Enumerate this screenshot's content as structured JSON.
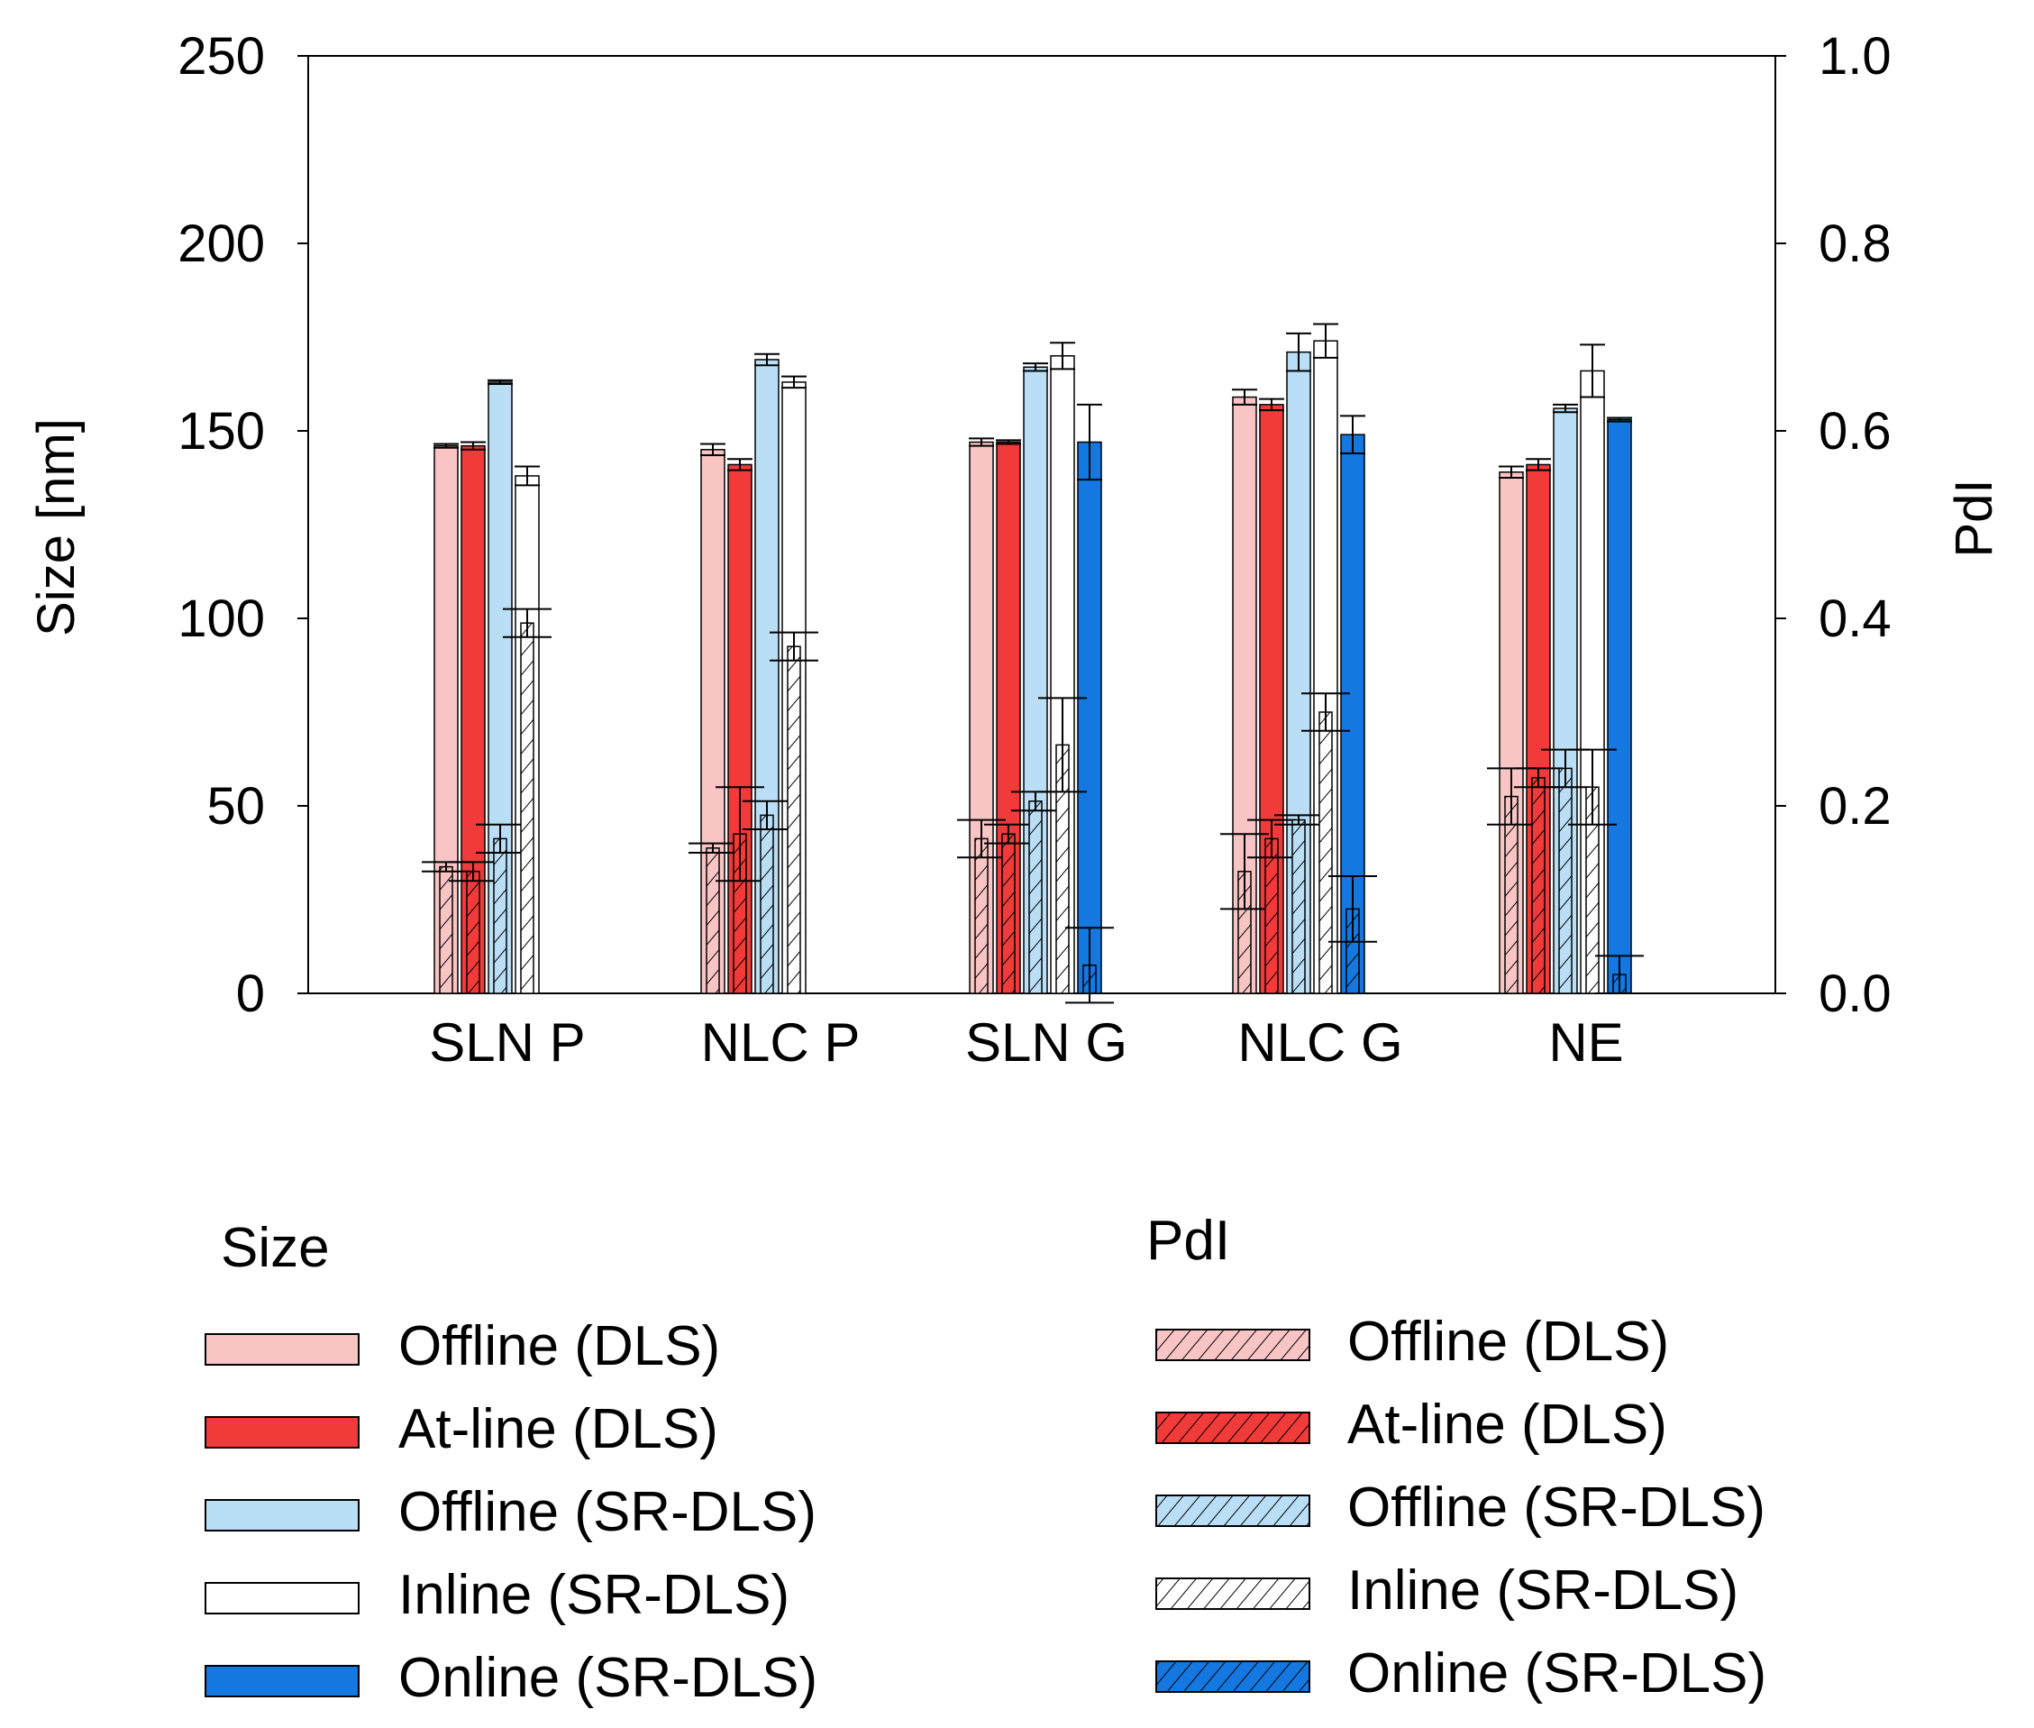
{
  "chart_data": {
    "type": "bar",
    "categories": [
      "SLN P",
      "NLC P",
      "SLN G",
      "NLC G",
      "NE"
    ],
    "y_left": {
      "label": "Size [nm]",
      "range": [
        0,
        250
      ],
      "ticks": [
        "0",
        "50",
        "100",
        "150",
        "200",
        "250"
      ]
    },
    "y_right": {
      "label": "PdI",
      "range": [
        0,
        1.0
      ],
      "ticks": [
        "0.0",
        "0.2",
        "0.4",
        "0.6",
        "0.8",
        "1.0"
      ]
    },
    "colors": {
      "offline_dls": "#f9c4c4",
      "atline_dls": "#f13a3a",
      "offline_srdls": "#b9def6",
      "inline_srdls": "#ffffff",
      "online_srdls": "#1478e0"
    },
    "size_series": [
      {
        "name": "Offline (DLS)",
        "color_key": "offline_dls",
        "values": [
          146,
          145,
          147,
          159,
          139
        ],
        "errors": [
          0.5,
          1.5,
          1.0,
          2.0,
          1.5
        ]
      },
      {
        "name": "At-line (DLS)",
        "color_key": "atline_dls",
        "values": [
          146,
          141,
          147,
          157,
          141
        ],
        "errors": [
          1.0,
          1.5,
          0.5,
          1.5,
          1.5
        ]
      },
      {
        "name": "Offline (SR-DLS)",
        "color_key": "offline_srdls",
        "values": [
          163,
          169,
          167,
          171,
          156
        ],
        "errors": [
          0.5,
          1.5,
          1.0,
          5.0,
          1.0
        ]
      },
      {
        "name": "Inline (SR-DLS)",
        "color_key": "inline_srdls",
        "values": [
          138,
          163,
          170,
          174,
          166
        ],
        "errors": [
          2.5,
          1.5,
          3.5,
          4.5,
          7.0
        ]
      },
      {
        "name": "Online (SR-DLS)",
        "color_key": "online_srdls",
        "values": [
          null,
          null,
          147,
          149,
          153
        ],
        "errors": [
          null,
          null,
          10,
          5.0,
          0.5
        ]
      }
    ],
    "pdi_series": [
      {
        "name": "Offline (DLS)",
        "color_key": "offline_dls",
        "values": [
          0.135,
          0.155,
          0.165,
          0.13,
          0.21
        ],
        "errors": [
          0.005,
          0.005,
          0.02,
          0.04,
          0.03
        ]
      },
      {
        "name": "At-line (DLS)",
        "color_key": "atline_dls",
        "values": [
          0.13,
          0.17,
          0.17,
          0.165,
          0.23
        ],
        "errors": [
          0.01,
          0.05,
          0.01,
          0.02,
          0.01
        ]
      },
      {
        "name": "Offline (SR-DLS)",
        "color_key": "offline_srdls",
        "values": [
          0.165,
          0.19,
          0.205,
          0.185,
          0.24
        ],
        "errors": [
          0.015,
          0.015,
          0.01,
          0.005,
          0.02
        ]
      },
      {
        "name": "Inline (SR-DLS)",
        "color_key": "inline_srdls",
        "values": [
          0.395,
          0.37,
          0.265,
          0.3,
          0.22
        ],
        "errors": [
          0.015,
          0.015,
          0.05,
          0.02,
          0.04
        ]
      },
      {
        "name": "Online (SR-DLS)",
        "color_key": "online_srdls",
        "values": [
          null,
          null,
          0.03,
          0.09,
          0.02
        ],
        "errors": [
          null,
          null,
          0.04,
          0.035,
          0.02
        ]
      }
    ]
  },
  "legend": {
    "size_title": "Size",
    "pdi_title": "PdI",
    "size_items": [
      {
        "label": "Offline (DLS)",
        "color_key": "offline_dls"
      },
      {
        "label": "At-line (DLS)",
        "color_key": "atline_dls"
      },
      {
        "label": "Offline (SR-DLS)",
        "color_key": "offline_srdls"
      },
      {
        "label": "Inline (SR-DLS)",
        "color_key": "inline_srdls"
      },
      {
        "label": "Online (SR-DLS)",
        "color_key": "online_srdls"
      }
    ],
    "pdi_items": [
      {
        "label": "Offline (DLS)",
        "color_key": "offline_dls"
      },
      {
        "label": "At-line (DLS)",
        "color_key": "atline_dls"
      },
      {
        "label": "Offline (SR-DLS)",
        "color_key": "offline_srdls"
      },
      {
        "label": "Inline (SR-DLS)",
        "color_key": "inline_srdls"
      },
      {
        "label": "Online (SR-DLS)",
        "color_key": "online_srdls"
      }
    ]
  }
}
